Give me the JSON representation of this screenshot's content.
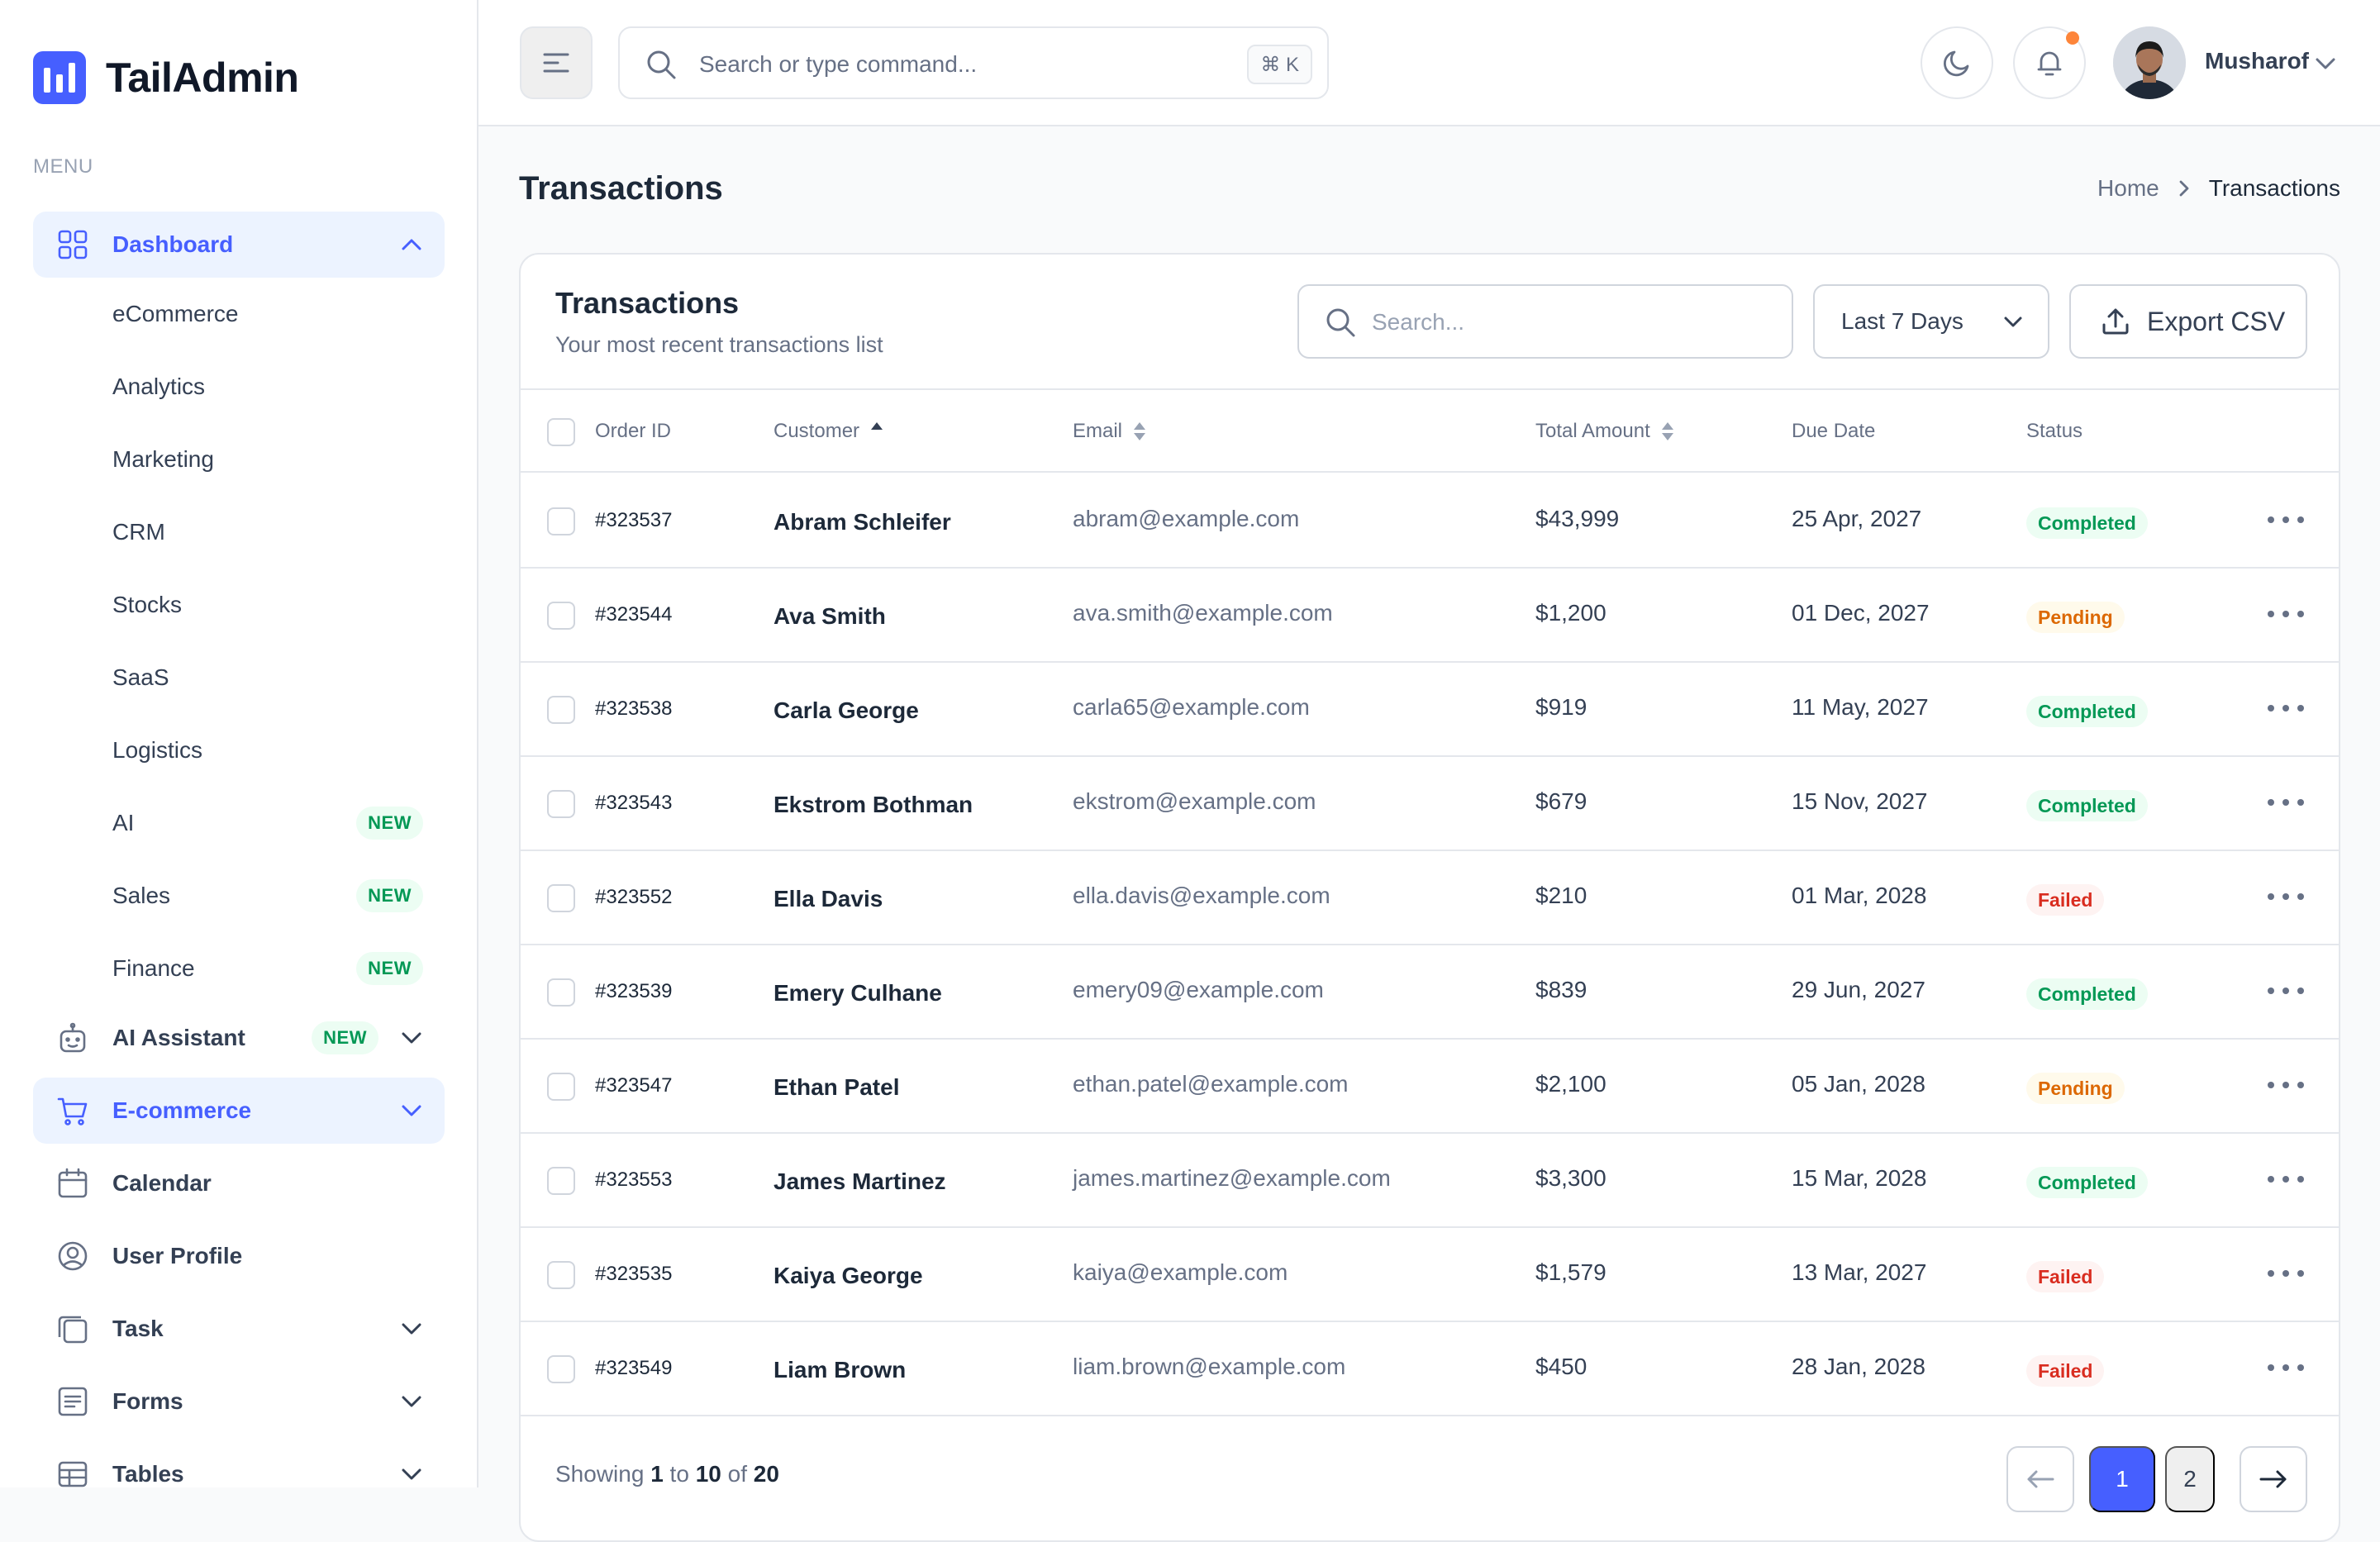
{
  "brand": {
    "name": "TailAdmin"
  },
  "sidebar": {
    "menu_caption": "MENU",
    "dashboard": {
      "label": "Dashboard",
      "sub_items": [
        {
          "label": "eCommerce"
        },
        {
          "label": "Analytics"
        },
        {
          "label": "Marketing"
        },
        {
          "label": "CRM"
        },
        {
          "label": "Stocks"
        },
        {
          "label": "SaaS"
        },
        {
          "label": "Logistics"
        },
        {
          "label": "AI",
          "badge": "NEW"
        },
        {
          "label": "Sales",
          "badge": "NEW"
        },
        {
          "label": "Finance",
          "badge": "NEW"
        }
      ]
    },
    "items": [
      {
        "label": "AI Assistant",
        "badge": "NEW"
      },
      {
        "label": "E-commerce"
      },
      {
        "label": "Calendar"
      },
      {
        "label": "User Profile"
      },
      {
        "label": "Task"
      },
      {
        "label": "Forms"
      },
      {
        "label": "Tables"
      }
    ]
  },
  "header": {
    "search_placeholder": "Search or type command...",
    "shortcut": "⌘ K",
    "user_name": "Musharof",
    "has_notification": true
  },
  "page": {
    "title": "Transactions",
    "breadcrumb": {
      "home": "Home",
      "current": "Transactions"
    }
  },
  "card": {
    "title": "Transactions",
    "subtitle": "Your most recent transactions list",
    "search_placeholder": "Search...",
    "date_range": "Last 7 Days",
    "export_label": "Export CSV"
  },
  "table": {
    "columns": [
      "Order ID",
      "Customer",
      "Email",
      "Total Amount",
      "Due Date",
      "Status"
    ],
    "rows": [
      {
        "order_id": "#323537",
        "customer": "Abram Schleifer",
        "email": "abram@example.com",
        "amount": "$43,999",
        "due": "25 Apr, 2027",
        "status": "Completed"
      },
      {
        "order_id": "#323544",
        "customer": "Ava Smith",
        "email": "ava.smith@example.com",
        "amount": "$1,200",
        "due": "01 Dec, 2027",
        "status": "Pending"
      },
      {
        "order_id": "#323538",
        "customer": "Carla George",
        "email": "carla65@example.com",
        "amount": "$919",
        "due": "11 May, 2027",
        "status": "Completed"
      },
      {
        "order_id": "#323543",
        "customer": "Ekstrom Bothman",
        "email": "ekstrom@example.com",
        "amount": "$679",
        "due": "15 Nov, 2027",
        "status": "Completed"
      },
      {
        "order_id": "#323552",
        "customer": "Ella Davis",
        "email": "ella.davis@example.com",
        "amount": "$210",
        "due": "01 Mar, 2028",
        "status": "Failed"
      },
      {
        "order_id": "#323539",
        "customer": "Emery Culhane",
        "email": "emery09@example.com",
        "amount": "$839",
        "due": "29 Jun, 2027",
        "status": "Completed"
      },
      {
        "order_id": "#323547",
        "customer": "Ethan Patel",
        "email": "ethan.patel@example.com",
        "amount": "$2,100",
        "due": "05 Jan, 2028",
        "status": "Pending"
      },
      {
        "order_id": "#323553",
        "customer": "James Martinez",
        "email": "james.martinez@example.com",
        "amount": "$3,300",
        "due": "15 Mar, 2028",
        "status": "Completed"
      },
      {
        "order_id": "#323535",
        "customer": "Kaiya George",
        "email": "kaiya@example.com",
        "amount": "$1,579",
        "due": "13 Mar, 2027",
        "status": "Failed"
      },
      {
        "order_id": "#323549",
        "customer": "Liam Brown",
        "email": "liam.brown@example.com",
        "amount": "$450",
        "due": "28 Jan, 2028",
        "status": "Failed"
      }
    ]
  },
  "pagination": {
    "showing_prefix": "Showing",
    "from": "1",
    "to_word": "to",
    "to": "10",
    "of_word": "of",
    "total": "20",
    "pages": [
      "1",
      "2"
    ],
    "current_page": "1"
  },
  "colors": {
    "accent": "#465fff",
    "accent_bg": "#ecf3ff",
    "completed": "#039855",
    "pending": "#dc6803",
    "failed": "#d92d20"
  }
}
